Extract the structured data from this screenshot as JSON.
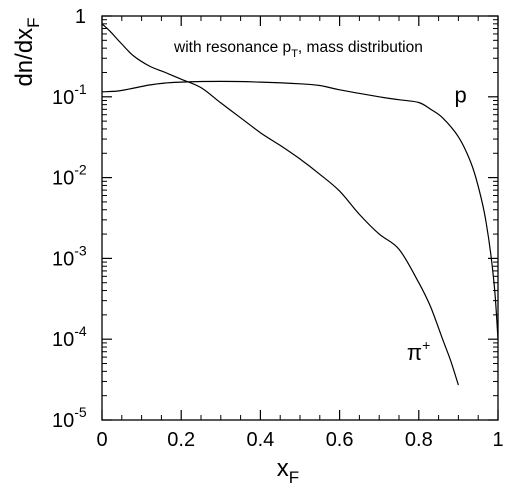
{
  "chart_data": {
    "type": "line",
    "title": "",
    "annotation": {
      "main": "with resonance p",
      "sub": "T",
      "rest": ", mass distribution"
    },
    "xlabel": {
      "main": "x",
      "sub": "F"
    },
    "ylabel": {
      "main": "dn/dx",
      "sub": "F"
    },
    "xlim": [
      0,
      1
    ],
    "ylim": [
      1e-05,
      1
    ],
    "yscale": "log",
    "grid": false,
    "x_ticks": [
      {
        "value": 0,
        "label": "0"
      },
      {
        "value": 0.2,
        "label": "0.2"
      },
      {
        "value": 0.4,
        "label": "0.4"
      },
      {
        "value": 0.6,
        "label": "0.6"
      },
      {
        "value": 0.8,
        "label": "0.8"
      },
      {
        "value": 1,
        "label": "1"
      }
    ],
    "y_ticks": [
      {
        "value": 1,
        "base": "1",
        "exp": ""
      },
      {
        "value": 0.1,
        "base": "10",
        "exp": "-1"
      },
      {
        "value": 0.01,
        "base": "10",
        "exp": "-2"
      },
      {
        "value": 0.001,
        "base": "10",
        "exp": "-3"
      },
      {
        "value": 0.0001,
        "base": "10",
        "exp": "-4"
      },
      {
        "value": 1e-05,
        "base": "10",
        "exp": "-5"
      }
    ],
    "series": [
      {
        "name": "p",
        "color": "#000000",
        "x": [
          0,
          0.04,
          0.08,
          0.12,
          0.16,
          0.2,
          0.3,
          0.4,
          0.5,
          0.55,
          0.6,
          0.7,
          0.75,
          0.8,
          0.83,
          0.86,
          0.9,
          0.93,
          0.95,
          0.97,
          0.99,
          1.0
        ],
        "y": [
          0.115,
          0.118,
          0.128,
          0.14,
          0.148,
          0.152,
          0.155,
          0.152,
          0.145,
          0.138,
          0.122,
          0.1,
          0.092,
          0.085,
          0.07,
          0.055,
          0.032,
          0.016,
          0.0078,
          0.0028,
          0.0005,
          0.0001
        ]
      },
      {
        "name": "π⁺",
        "color": "#000000",
        "x": [
          0,
          0.02,
          0.05,
          0.08,
          0.12,
          0.16,
          0.2,
          0.25,
          0.3,
          0.35,
          0.4,
          0.45,
          0.5,
          0.55,
          0.6,
          0.65,
          0.7,
          0.75,
          0.8,
          0.83,
          0.86,
          0.88,
          0.9
        ],
        "y": [
          0.8,
          0.65,
          0.45,
          0.32,
          0.24,
          0.2,
          0.165,
          0.13,
          0.084,
          0.055,
          0.036,
          0.025,
          0.017,
          0.011,
          0.0068,
          0.0035,
          0.002,
          0.0013,
          0.0005,
          0.00025,
          0.0001,
          5.5e-05,
          2.7e-05
        ]
      }
    ],
    "series_labels": [
      {
        "text": "p",
        "sup": "",
        "x": 0.89,
        "y": 0.085
      },
      {
        "text": "π",
        "sup": "+",
        "x": 0.77,
        "y": 5.5e-05
      }
    ]
  }
}
